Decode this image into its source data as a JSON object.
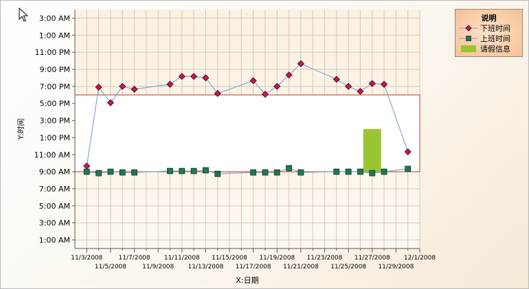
{
  "chart_data": {
    "type": "line",
    "xlabel": "X:日期",
    "ylabel": "Y:时间",
    "x_tick_labels": [
      "11/3/2008",
      "11/5/2008",
      "11/7/2008",
      "11/9/2008",
      "11/11/2008",
      "11/13/2008",
      "11/15/2008",
      "11/17/2008",
      "11/19/2008",
      "11/21/2008",
      "11/23/2008",
      "11/25/2008",
      "11/27/2008",
      "11/29/2008",
      "12/1/2008"
    ],
    "y_tick_labels": [
      "1:00 AM",
      "3:00 AM",
      "5:00 AM",
      "7:00 AM",
      "9:00 AM",
      "11:00 AM",
      "1:00 PM",
      "3:00 PM",
      "5:00 PM",
      "7:00 PM",
      "9:00 PM",
      "11:00 PM",
      "1:00 AM",
      "3:00 AM"
    ],
    "xlim": [
      "2008-11-02",
      "2008-12-01"
    ],
    "ylim": [
      "0:00",
      "28:00"
    ],
    "grid": true,
    "legend": {
      "title": "说明",
      "position": "top-right"
    },
    "reference_band": {
      "from": "9:00 AM",
      "to": "6:00 PM",
      "color": "#c0392b"
    },
    "series": [
      {
        "name": "下班时间",
        "kind": "line",
        "marker": "diamond",
        "color": "#c8174a",
        "line_color": "#7fa6d9",
        "points": [
          {
            "x": "2008-11-03",
            "y": "9:40 AM"
          },
          {
            "x": "2008-11-04",
            "y": "6:55 PM"
          },
          {
            "x": "2008-11-05",
            "y": "5:05 PM"
          },
          {
            "x": "2008-11-06",
            "y": "7:00 PM"
          },
          {
            "x": "2008-11-07",
            "y": "6:40 PM"
          },
          {
            "x": "2008-11-10",
            "y": "7:15 PM"
          },
          {
            "x": "2008-11-11",
            "y": "8:10 PM"
          },
          {
            "x": "2008-11-12",
            "y": "8:10 PM"
          },
          {
            "x": "2008-11-13",
            "y": "8:00 PM"
          },
          {
            "x": "2008-11-14",
            "y": "6:10 PM"
          },
          {
            "x": "2008-11-17",
            "y": "7:40 PM"
          },
          {
            "x": "2008-11-18",
            "y": "6:05 PM"
          },
          {
            "x": "2008-11-19",
            "y": "7:00 PM"
          },
          {
            "x": "2008-11-20",
            "y": "8:20 PM"
          },
          {
            "x": "2008-11-21",
            "y": "9:40 PM"
          },
          {
            "x": "2008-11-24",
            "y": "7:50 PM"
          },
          {
            "x": "2008-11-25",
            "y": "7:00 PM"
          },
          {
            "x": "2008-11-26",
            "y": "6:25 PM"
          },
          {
            "x": "2008-11-27",
            "y": "7:20 PM"
          },
          {
            "x": "2008-11-28",
            "y": "7:15 PM"
          },
          {
            "x": "2008-11-30",
            "y": "11:20 AM"
          }
        ]
      },
      {
        "name": "上班时间",
        "kind": "line",
        "marker": "square",
        "color": "#1e7a4e",
        "line_color": "#7fa6d9",
        "points": [
          {
            "x": "2008-11-03",
            "y": "9:00 AM"
          },
          {
            "x": "2008-11-04",
            "y": "8:50 AM"
          },
          {
            "x": "2008-11-05",
            "y": "9:00 AM"
          },
          {
            "x": "2008-11-06",
            "y": "8:55 AM"
          },
          {
            "x": "2008-11-07",
            "y": "8:55 AM"
          },
          {
            "x": "2008-11-10",
            "y": "9:05 AM"
          },
          {
            "x": "2008-11-11",
            "y": "9:05 AM"
          },
          {
            "x": "2008-11-12",
            "y": "9:05 AM"
          },
          {
            "x": "2008-11-13",
            "y": "9:10 AM"
          },
          {
            "x": "2008-11-14",
            "y": "8:45 AM"
          },
          {
            "x": "2008-11-17",
            "y": "8:55 AM"
          },
          {
            "x": "2008-11-18",
            "y": "8:55 AM"
          },
          {
            "x": "2008-11-19",
            "y": "8:55 AM"
          },
          {
            "x": "2008-11-20",
            "y": "9:25 AM"
          },
          {
            "x": "2008-11-21",
            "y": "8:55 AM"
          },
          {
            "x": "2008-11-24",
            "y": "9:00 AM"
          },
          {
            "x": "2008-11-25",
            "y": "9:00 AM"
          },
          {
            "x": "2008-11-26",
            "y": "9:00 AM"
          },
          {
            "x": "2008-11-27",
            "y": "8:50 AM"
          },
          {
            "x": "2008-11-28",
            "y": "9:00 AM"
          },
          {
            "x": "2008-11-30",
            "y": "9:20 AM"
          }
        ]
      },
      {
        "name": "请假信息",
        "kind": "bar",
        "color": "#9ac532",
        "bars": [
          {
            "x": "2008-11-27",
            "from": "9:00 AM",
            "to": "2:00 PM"
          }
        ]
      }
    ]
  }
}
